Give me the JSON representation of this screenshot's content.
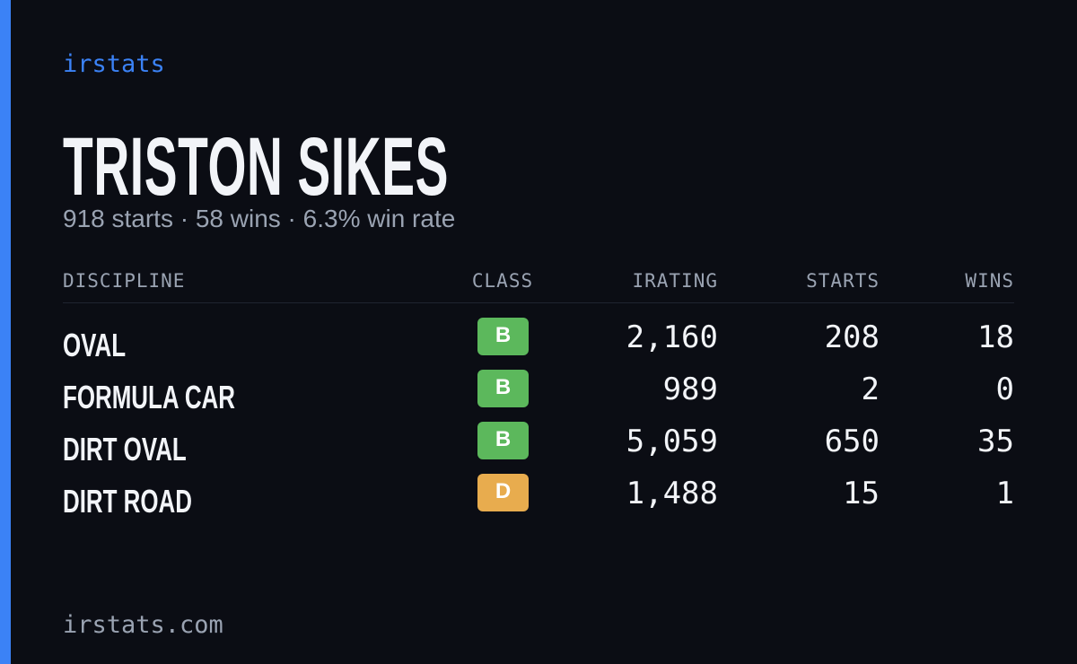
{
  "brand": "irstats",
  "driver": {
    "name": "TRISTON SIKES",
    "summary": "918 starts · 58 wins · 6.3% win rate"
  },
  "table": {
    "headers": [
      "DISCIPLINE",
      "CLASS",
      "IRATING",
      "STARTS",
      "WINS"
    ],
    "rows": [
      {
        "discipline": "OVAL",
        "class": "B",
        "class_color": "#5cb85c",
        "irating": "2,160",
        "starts": "208",
        "wins": "18"
      },
      {
        "discipline": "FORMULA CAR",
        "class": "B",
        "class_color": "#5cb85c",
        "irating": "989",
        "starts": "2",
        "wins": "0"
      },
      {
        "discipline": "DIRT OVAL",
        "class": "B",
        "class_color": "#5cb85c",
        "irating": "5,059",
        "starts": "650",
        "wins": "35"
      },
      {
        "discipline": "DIRT ROAD",
        "class": "D",
        "class_color": "#e8ac4e",
        "irating": "1,488",
        "starts": "15",
        "wins": "1"
      }
    ]
  },
  "footer": "irstats.com"
}
